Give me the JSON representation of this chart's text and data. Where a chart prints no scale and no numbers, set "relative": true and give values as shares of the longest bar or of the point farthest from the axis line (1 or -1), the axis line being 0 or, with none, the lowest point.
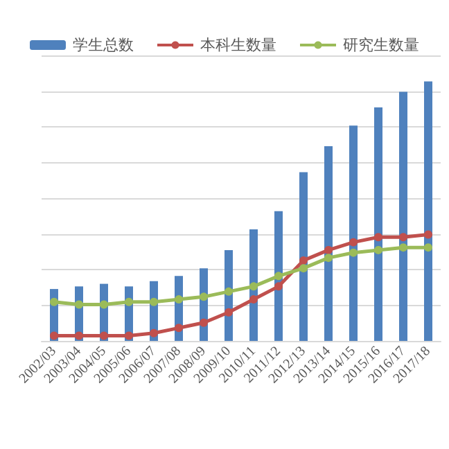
{
  "chart_data": {
    "type": "bar",
    "relative": true,
    "legend": "top",
    "grid": "y",
    "marker": "circle",
    "categories": [
      "2002/03",
      "2003/04",
      "2004/05",
      "2005/06",
      "2006/07",
      "2007/08",
      "2008/09",
      "2009/10",
      "2010/11",
      "2011/12",
      "2012/13",
      "2013/14",
      "2014/15",
      "2015/16",
      "2016/17",
      "2017/18"
    ],
    "series": [
      {
        "name": "学生总数",
        "color": "#4f81bd",
        "values": [
          0.2,
          0.21,
          0.22,
          0.21,
          0.23,
          0.25,
          0.28,
          0.35,
          0.43,
          0.5,
          0.65,
          0.75,
          0.83,
          0.9,
          0.96,
          1
        ]
      },
      {
        "name": "本科生数量",
        "type": "line",
        "color": "#c0504d",
        "values": [
          0.02,
          0.02,
          0.02,
          0.02,
          0.03,
          0.05,
          0.07,
          0.11,
          0.16,
          0.21,
          0.31,
          0.35,
          0.38,
          0.4,
          0.4,
          0.41
        ]
      },
      {
        "name": "研究生数量",
        "type": "line",
        "color": "#9bbb59",
        "values": [
          0.15,
          0.14,
          0.14,
          0.15,
          0.15,
          0.16,
          0.17,
          0.19,
          0.21,
          0.25,
          0.28,
          0.32,
          0.34,
          0.35,
          0.36,
          0.36
        ]
      }
    ]
  }
}
